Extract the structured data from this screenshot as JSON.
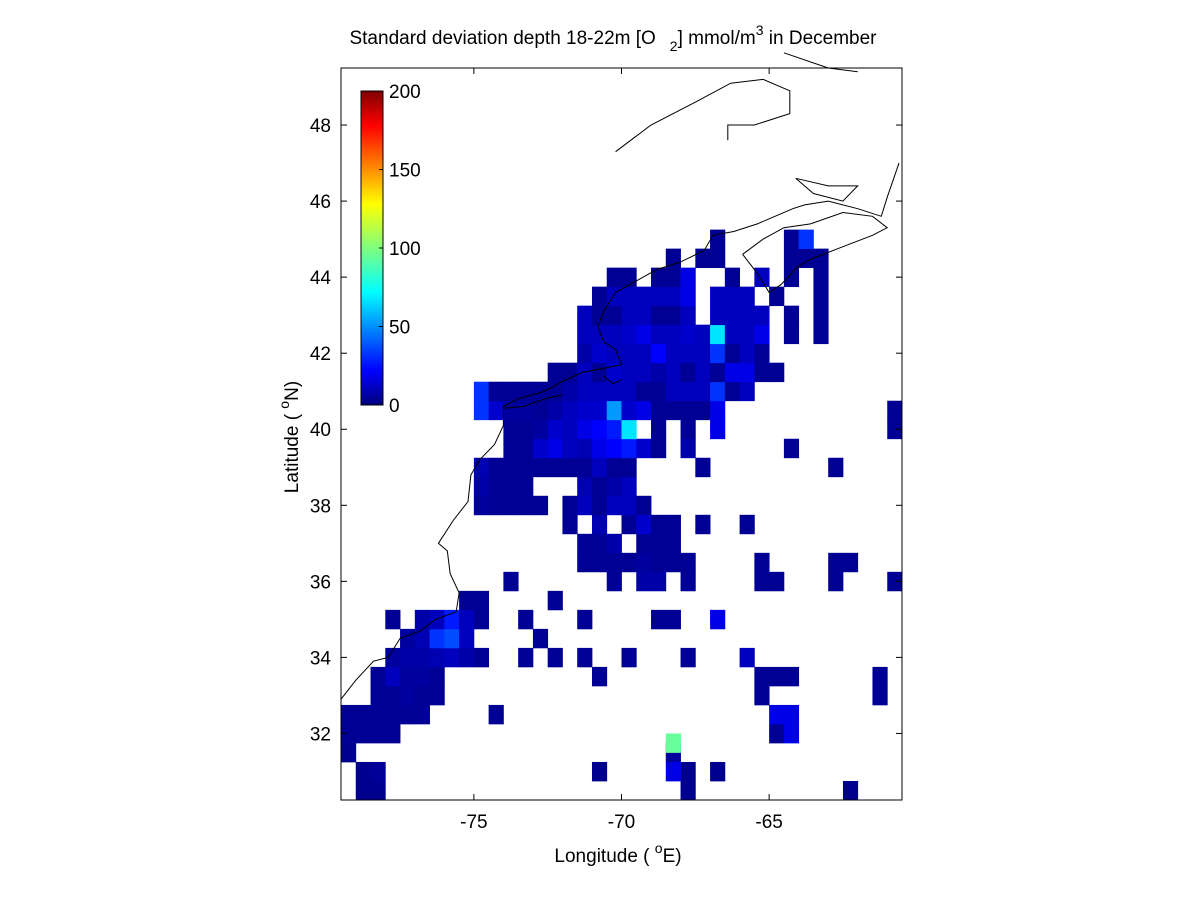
{
  "chart_data": {
    "type": "heatmap",
    "title_main": "Standard deviation depth 18-22m [O",
    "title_sub": "2",
    "title_unit": "] mmol/m",
    "title_sup": "3",
    "title_end": " in December",
    "xlabel_main": "Longitude ( ",
    "xlabel_sup": "o",
    "xlabel_end": "E)",
    "ylabel_main": "Latitude ( ",
    "ylabel_sup": "o",
    "ylabel_end": "N)",
    "xlim": [
      -79.5,
      -60.5
    ],
    "ylim": [
      30.25,
      49.5
    ],
    "xticks": [
      -75,
      -70,
      -65
    ],
    "yticks": [
      32,
      34,
      36,
      38,
      40,
      42,
      44,
      46,
      48
    ],
    "xtick_labels": [
      "-75",
      "-70",
      "-65"
    ],
    "ytick_labels": [
      "32",
      "34",
      "36",
      "38",
      "40",
      "42",
      "44",
      "46",
      "48"
    ],
    "colorbar": {
      "colormap": "jet",
      "range": [
        0,
        200
      ],
      "ticks": [
        0,
        50,
        100,
        150,
        200
      ],
      "tick_labels": [
        "0",
        "50",
        "100",
        "150",
        "200"
      ],
      "placement": "upper-left inside axes"
    },
    "cell_size_deg": 0.5,
    "grid": false,
    "cells_description": "Each cell is [lon_center, lat_center, std_dev_value]",
    "cells": [
      [
        -78.75,
        30.5,
        3
      ],
      [
        -78.25,
        30.5,
        3
      ],
      [
        -78.75,
        31.0,
        3
      ],
      [
        -78.25,
        31.0,
        5
      ],
      [
        -79.25,
        31.5,
        3
      ],
      [
        -68.25,
        31.5,
        6
      ],
      [
        -66.75,
        31.0,
        3
      ],
      [
        -67.75,
        31.0,
        3
      ],
      [
        -70.75,
        31.0,
        3
      ],
      [
        -68.25,
        31.0,
        20
      ],
      [
        -67.75,
        30.5,
        3
      ],
      [
        -62.25,
        30.5,
        3
      ],
      [
        -79.25,
        32.0,
        4
      ],
      [
        -78.75,
        32.0,
        4
      ],
      [
        -78.25,
        32.0,
        4
      ],
      [
        -77.75,
        32.0,
        4
      ],
      [
        -64.75,
        32.0,
        4
      ],
      [
        -64.25,
        32.0,
        20
      ],
      [
        -68.25,
        31.75,
        95
      ],
      [
        -79.25,
        32.5,
        4
      ],
      [
        -78.75,
        32.5,
        4
      ],
      [
        -78.25,
        32.5,
        4
      ],
      [
        -77.75,
        32.5,
        4
      ],
      [
        -77.25,
        32.5,
        4
      ],
      [
        -76.75,
        32.5,
        4
      ],
      [
        -74.25,
        32.5,
        4
      ],
      [
        -64.75,
        32.5,
        20
      ],
      [
        -64.25,
        32.5,
        20
      ],
      [
        -78.25,
        33.0,
        4
      ],
      [
        -77.75,
        33.0,
        4
      ],
      [
        -77.25,
        33.0,
        6
      ],
      [
        -76.75,
        33.0,
        4
      ],
      [
        -76.25,
        33.0,
        4
      ],
      [
        -65.25,
        33.0,
        4
      ],
      [
        -61.25,
        33.0,
        4
      ],
      [
        -78.25,
        33.5,
        4
      ],
      [
        -77.75,
        33.5,
        12
      ],
      [
        -77.25,
        33.5,
        6
      ],
      [
        -76.75,
        33.5,
        6
      ],
      [
        -76.25,
        33.5,
        4
      ],
      [
        -70.75,
        33.5,
        4
      ],
      [
        -65.25,
        33.5,
        4
      ],
      [
        -64.75,
        33.5,
        4
      ],
      [
        -64.25,
        33.5,
        4
      ],
      [
        -61.25,
        33.5,
        4
      ],
      [
        -77.75,
        34.0,
        6
      ],
      [
        -77.25,
        34.0,
        8
      ],
      [
        -76.75,
        34.0,
        8
      ],
      [
        -76.25,
        34.0,
        10
      ],
      [
        -75.75,
        34.0,
        12
      ],
      [
        -75.25,
        34.0,
        8
      ],
      [
        -74.75,
        34.0,
        4
      ],
      [
        -73.25,
        34.0,
        4
      ],
      [
        -72.25,
        34.0,
        4
      ],
      [
        -71.25,
        34.0,
        4
      ],
      [
        -69.75,
        34.0,
        4
      ],
      [
        -67.75,
        34.0,
        4
      ],
      [
        -65.75,
        34.0,
        12
      ],
      [
        -77.25,
        34.5,
        6
      ],
      [
        -76.75,
        34.5,
        10
      ],
      [
        -76.25,
        34.5,
        35
      ],
      [
        -75.75,
        34.5,
        40
      ],
      [
        -75.25,
        34.5,
        12
      ],
      [
        -72.75,
        34.5,
        4
      ],
      [
        -77.75,
        35.0,
        4
      ],
      [
        -76.75,
        35.0,
        8
      ],
      [
        -76.25,
        35.0,
        12
      ],
      [
        -75.75,
        35.0,
        30
      ],
      [
        -75.25,
        35.0,
        12
      ],
      [
        -74.75,
        35.0,
        4
      ],
      [
        -73.25,
        35.0,
        4
      ],
      [
        -71.25,
        35.0,
        4
      ],
      [
        -68.75,
        35.0,
        4
      ],
      [
        -68.25,
        35.0,
        4
      ],
      [
        -66.75,
        35.0,
        20
      ],
      [
        -75.25,
        35.5,
        4
      ],
      [
        -74.75,
        35.5,
        4
      ],
      [
        -72.25,
        35.5,
        4
      ],
      [
        -73.75,
        36.0,
        4
      ],
      [
        -70.25,
        36.0,
        4
      ],
      [
        -69.25,
        36.0,
        8
      ],
      [
        -68.75,
        36.0,
        8
      ],
      [
        -67.75,
        36.0,
        4
      ],
      [
        -65.25,
        36.0,
        4
      ],
      [
        -64.75,
        36.0,
        4
      ],
      [
        -62.75,
        36.0,
        4
      ],
      [
        -60.75,
        36.0,
        4
      ],
      [
        -71.25,
        36.5,
        4
      ],
      [
        -70.75,
        36.5,
        4
      ],
      [
        -70.25,
        36.5,
        4
      ],
      [
        -69.75,
        36.5,
        4
      ],
      [
        -69.25,
        36.5,
        6
      ],
      [
        -68.75,
        36.5,
        4
      ],
      [
        -68.25,
        36.5,
        4
      ],
      [
        -67.75,
        36.5,
        4
      ],
      [
        -65.25,
        36.5,
        4
      ],
      [
        -62.75,
        36.5,
        4
      ],
      [
        -62.25,
        36.5,
        4
      ],
      [
        -71.25,
        37.0,
        4
      ],
      [
        -70.75,
        37.0,
        4
      ],
      [
        -70.25,
        37.0,
        8
      ],
      [
        -69.25,
        37.0,
        4
      ],
      [
        -68.75,
        37.0,
        4
      ],
      [
        -68.25,
        37.0,
        4
      ],
      [
        -71.75,
        37.5,
        4
      ],
      [
        -70.75,
        37.5,
        10
      ],
      [
        -69.75,
        37.5,
        4
      ],
      [
        -69.25,
        37.5,
        15
      ],
      [
        -68.75,
        37.5,
        4
      ],
      [
        -68.25,
        37.5,
        4
      ],
      [
        -67.25,
        37.5,
        4
      ],
      [
        -65.75,
        37.5,
        4
      ],
      [
        -74.75,
        38.0,
        6
      ],
      [
        -74.25,
        38.0,
        4
      ],
      [
        -73.75,
        38.0,
        4
      ],
      [
        -73.25,
        38.0,
        4
      ],
      [
        -72.75,
        38.0,
        4
      ],
      [
        -71.75,
        38.0,
        4
      ],
      [
        -71.25,
        38.0,
        12
      ],
      [
        -70.75,
        38.0,
        4
      ],
      [
        -70.25,
        38.0,
        12
      ],
      [
        -69.75,
        38.0,
        12
      ],
      [
        -69.25,
        38.0,
        4
      ],
      [
        -74.75,
        38.5,
        8
      ],
      [
        -74.25,
        38.5,
        4
      ],
      [
        -73.75,
        38.5,
        4
      ],
      [
        -73.25,
        38.5,
        4
      ],
      [
        -71.25,
        38.5,
        10
      ],
      [
        -70.75,
        38.5,
        4
      ],
      [
        -70.25,
        38.5,
        8
      ],
      [
        -69.75,
        38.5,
        12
      ],
      [
        -74.75,
        39.0,
        10
      ],
      [
        -74.25,
        39.0,
        4
      ],
      [
        -73.75,
        39.0,
        4
      ],
      [
        -73.25,
        39.0,
        4
      ],
      [
        -72.75,
        39.0,
        4
      ],
      [
        -72.25,
        39.0,
        4
      ],
      [
        -71.75,
        39.0,
        4
      ],
      [
        -71.25,
        39.0,
        4
      ],
      [
        -70.75,
        39.0,
        12
      ],
      [
        -70.25,
        39.0,
        4
      ],
      [
        -69.75,
        39.0,
        4
      ],
      [
        -67.25,
        39.0,
        4
      ],
      [
        -62.75,
        39.0,
        4
      ],
      [
        -73.75,
        39.5,
        4
      ],
      [
        -73.25,
        39.5,
        4
      ],
      [
        -72.75,
        39.5,
        15
      ],
      [
        -72.25,
        39.5,
        20
      ],
      [
        -71.75,
        39.5,
        12
      ],
      [
        -71.25,
        39.5,
        10
      ],
      [
        -70.75,
        39.5,
        20
      ],
      [
        -70.25,
        39.5,
        25
      ],
      [
        -69.75,
        39.5,
        30
      ],
      [
        -69.25,
        39.5,
        15
      ],
      [
        -68.75,
        39.5,
        4
      ],
      [
        -67.75,
        39.5,
        8
      ],
      [
        -64.25,
        39.5,
        4
      ],
      [
        -73.75,
        40.0,
        4
      ],
      [
        -73.25,
        40.0,
        4
      ],
      [
        -72.75,
        40.0,
        6
      ],
      [
        -72.25,
        40.0,
        15
      ],
      [
        -71.75,
        40.0,
        12
      ],
      [
        -71.25,
        40.0,
        20
      ],
      [
        -70.75,
        40.0,
        25
      ],
      [
        -70.25,
        40.0,
        30
      ],
      [
        -69.75,
        40.0,
        70
      ],
      [
        -68.75,
        40.0,
        4
      ],
      [
        -67.75,
        40.0,
        4
      ],
      [
        -66.75,
        40.0,
        20
      ],
      [
        -60.75,
        40.0,
        4
      ],
      [
        -74.75,
        40.5,
        35
      ],
      [
        -74.25,
        40.5,
        15
      ],
      [
        -73.75,
        40.5,
        6
      ],
      [
        -73.25,
        40.5,
        6
      ],
      [
        -72.75,
        40.5,
        4
      ],
      [
        -72.25,
        40.5,
        8
      ],
      [
        -71.75,
        40.5,
        12
      ],
      [
        -71.25,
        40.5,
        15
      ],
      [
        -70.75,
        40.5,
        15
      ],
      [
        -70.25,
        40.5,
        55
      ],
      [
        -69.75,
        40.5,
        15
      ],
      [
        -69.25,
        40.5,
        20
      ],
      [
        -68.75,
        40.5,
        4
      ],
      [
        -68.25,
        40.5,
        4
      ],
      [
        -67.75,
        40.5,
        4
      ],
      [
        -67.25,
        40.5,
        4
      ],
      [
        -66.75,
        40.5,
        20
      ],
      [
        -60.75,
        40.5,
        4
      ],
      [
        -74.75,
        41.0,
        35
      ],
      [
        -74.25,
        41.0,
        4
      ],
      [
        -73.75,
        41.0,
        4
      ],
      [
        -73.25,
        41.0,
        4
      ],
      [
        -72.75,
        41.0,
        4
      ],
      [
        -72.25,
        41.0,
        4
      ],
      [
        -71.75,
        41.0,
        8
      ],
      [
        -71.25,
        41.0,
        12
      ],
      [
        -70.75,
        41.0,
        12
      ],
      [
        -70.25,
        41.0,
        12
      ],
      [
        -69.75,
        41.0,
        12
      ],
      [
        -69.25,
        41.0,
        4
      ],
      [
        -68.75,
        41.0,
        4
      ],
      [
        -68.25,
        41.0,
        12
      ],
      [
        -67.75,
        41.0,
        12
      ],
      [
        -67.25,
        41.0,
        12
      ],
      [
        -66.75,
        41.0,
        35
      ],
      [
        -66.25,
        41.0,
        4
      ],
      [
        -65.75,
        41.0,
        12
      ],
      [
        -72.25,
        41.5,
        4
      ],
      [
        -71.75,
        41.5,
        4
      ],
      [
        -71.25,
        41.5,
        12
      ],
      [
        -70.75,
        41.5,
        4
      ],
      [
        -70.25,
        41.5,
        15
      ],
      [
        -69.75,
        41.5,
        12
      ],
      [
        -69.25,
        41.5,
        12
      ],
      [
        -68.75,
        41.5,
        8
      ],
      [
        -68.25,
        41.5,
        12
      ],
      [
        -67.75,
        41.5,
        4
      ],
      [
        -67.25,
        41.5,
        12
      ],
      [
        -66.75,
        41.5,
        4
      ],
      [
        -66.25,
        41.5,
        20
      ],
      [
        -65.75,
        41.5,
        20
      ],
      [
        -65.25,
        41.5,
        4
      ],
      [
        -64.75,
        41.5,
        4
      ],
      [
        -71.25,
        42.0,
        8
      ],
      [
        -70.75,
        42.0,
        15
      ],
      [
        -70.25,
        42.0,
        12
      ],
      [
        -69.75,
        42.0,
        12
      ],
      [
        -69.25,
        42.0,
        12
      ],
      [
        -68.75,
        42.0,
        25
      ],
      [
        -68.25,
        42.0,
        12
      ],
      [
        -67.75,
        42.0,
        12
      ],
      [
        -67.25,
        42.0,
        12
      ],
      [
        -66.75,
        42.0,
        35
      ],
      [
        -66.25,
        42.0,
        4
      ],
      [
        -65.75,
        42.0,
        12
      ],
      [
        -65.25,
        42.0,
        4
      ],
      [
        -71.25,
        42.5,
        12
      ],
      [
        -70.75,
        42.5,
        12
      ],
      [
        -70.25,
        42.5,
        12
      ],
      [
        -69.75,
        42.5,
        15
      ],
      [
        -69.25,
        42.5,
        20
      ],
      [
        -68.75,
        42.5,
        12
      ],
      [
        -68.25,
        42.5,
        12
      ],
      [
        -67.75,
        42.5,
        15
      ],
      [
        -67.25,
        42.5,
        12
      ],
      [
        -66.75,
        42.5,
        70
      ],
      [
        -66.25,
        42.5,
        12
      ],
      [
        -65.75,
        42.5,
        12
      ],
      [
        -65.25,
        42.5,
        20
      ],
      [
        -64.25,
        42.5,
        4
      ],
      [
        -63.25,
        42.5,
        4
      ],
      [
        -71.25,
        43.0,
        12
      ],
      [
        -70.75,
        43.0,
        4
      ],
      [
        -70.25,
        43.0,
        4
      ],
      [
        -69.75,
        43.0,
        12
      ],
      [
        -69.25,
        43.0,
        12
      ],
      [
        -68.75,
        43.0,
        4
      ],
      [
        -68.25,
        43.0,
        4
      ],
      [
        -67.75,
        43.0,
        12
      ],
      [
        -66.75,
        43.0,
        12
      ],
      [
        -66.25,
        43.0,
        12
      ],
      [
        -65.75,
        43.0,
        12
      ],
      [
        -65.25,
        43.0,
        12
      ],
      [
        -64.25,
        43.0,
        4
      ],
      [
        -63.25,
        43.0,
        4
      ],
      [
        -70.75,
        43.5,
        4
      ],
      [
        -70.25,
        43.5,
        12
      ],
      [
        -69.75,
        43.5,
        12
      ],
      [
        -69.25,
        43.5,
        12
      ],
      [
        -68.75,
        43.5,
        12
      ],
      [
        -68.25,
        43.5,
        12
      ],
      [
        -67.75,
        43.5,
        20
      ],
      [
        -66.75,
        43.5,
        12
      ],
      [
        -66.25,
        43.5,
        12
      ],
      [
        -65.75,
        43.5,
        12
      ],
      [
        -64.75,
        43.5,
        4
      ],
      [
        -63.25,
        43.5,
        4
      ],
      [
        -70.25,
        44.0,
        4
      ],
      [
        -69.75,
        44.0,
        4
      ],
      [
        -68.75,
        44.0,
        4
      ],
      [
        -68.25,
        44.0,
        4
      ],
      [
        -67.75,
        44.0,
        20
      ],
      [
        -66.25,
        44.0,
        4
      ],
      [
        -65.25,
        44.0,
        12
      ],
      [
        -64.25,
        44.0,
        4
      ],
      [
        -63.25,
        44.0,
        4
      ],
      [
        -68.25,
        44.5,
        4
      ],
      [
        -67.25,
        44.5,
        4
      ],
      [
        -66.75,
        44.5,
        4
      ],
      [
        -64.25,
        44.5,
        4
      ],
      [
        -63.75,
        44.5,
        4
      ],
      [
        -63.25,
        44.5,
        4
      ],
      [
        -66.75,
        45.0,
        4
      ],
      [
        -64.25,
        45.0,
        4
      ],
      [
        -63.75,
        45.0,
        35
      ]
    ]
  }
}
